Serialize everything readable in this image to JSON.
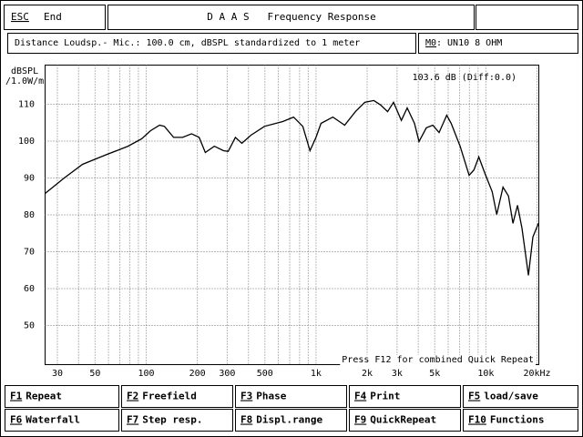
{
  "header": {
    "escape_key": "ESC",
    "escape_label": "End",
    "title": "D A A S   Frequency Response"
  },
  "info": {
    "text": "Distance Loudsp.- Mic.: 100.0 cm, dBSPL standardized to 1 meter",
    "model_key": "M0",
    "model": ": UN10 8 OHM"
  },
  "chart_data": {
    "type": "line",
    "log_x": true,
    "grid": true,
    "color": "#000000",
    "ylabel": "dBSPL",
    "ylabel_unit": "/1.0W/m",
    "annotations": [
      "103.6 dB (Diff:0.0)",
      "Press F12 for combined Quick Repeat"
    ],
    "xlim": [
      25.4,
      20500
    ],
    "ylim": [
      39.4,
      120.6
    ],
    "xticks": [
      30,
      50,
      100,
      200,
      300,
      500,
      {
        "value": 1000,
        "label": "1k"
      },
      {
        "value": 2000,
        "label": "2k"
      },
      {
        "value": 3000,
        "label": "3k"
      },
      {
        "value": 5000,
        "label": "5k"
      },
      {
        "value": 10000,
        "label": "10k"
      },
      {
        "value": 20000,
        "label": "20kHz"
      }
    ],
    "xgrid_minor": [
      40,
      60,
      70,
      80,
      90,
      400,
      600,
      700,
      800,
      900,
      4000,
      6000,
      7000,
      8000,
      9000
    ],
    "yticks": [
      50,
      60,
      70,
      80,
      90,
      100,
      110
    ],
    "x": [
      25.4,
      32.9,
      42.2,
      57.4,
      78.1,
      94,
      106,
      120,
      128,
      145,
      164,
      185,
      205,
      223,
      252,
      285,
      304,
      335,
      366,
      414,
      497,
      637,
      738,
      836,
      922,
      1000,
      1070,
      1257,
      1475,
      1706,
      1937,
      2190,
      2400,
      2640,
      2860,
      3180,
      3440,
      3800,
      4040,
      4460,
      4870,
      5300,
      5880,
      6250,
      7050,
      7970,
      8510,
      9080,
      9880,
      10890,
      11590,
      12620,
      13580,
      14430,
      15350,
      16320,
      17800,
      18930,
      20400
    ],
    "values": [
      85.8,
      90,
      93.7,
      96.2,
      98.6,
      100.6,
      102.8,
      104.3,
      104,
      101,
      101,
      102,
      101,
      96.9,
      98.6,
      97.4,
      97.2,
      101,
      99.4,
      101.6,
      104,
      105.3,
      106.5,
      104,
      97.4,
      101,
      104.8,
      106.5,
      104.3,
      108,
      110.5,
      111,
      109.8,
      108,
      110.5,
      105.6,
      109,
      104.8,
      99.9,
      103.6,
      104.3,
      102.3,
      107,
      104.8,
      98.6,
      90.7,
      92.2,
      95.7,
      91.2,
      86.3,
      80.1,
      87.5,
      85.1,
      77.7,
      82.6,
      76.4,
      63.6,
      74,
      77.7
    ]
  },
  "function_keys": [
    {
      "key": "F1",
      "label": "Repeat"
    },
    {
      "key": "F2",
      "label": "Freefield"
    },
    {
      "key": "F3",
      "label": "Phase"
    },
    {
      "key": "F4",
      "label": "Print"
    },
    {
      "key": "F5",
      "label": "load/save"
    },
    {
      "key": "F6",
      "label": "Waterfall"
    },
    {
      "key": "F7",
      "label": "Step resp."
    },
    {
      "key": "F8",
      "label": "Displ.range"
    },
    {
      "key": "F9",
      "label": "QuickRepeat"
    },
    {
      "key": "F10",
      "label": "Functions"
    }
  ]
}
